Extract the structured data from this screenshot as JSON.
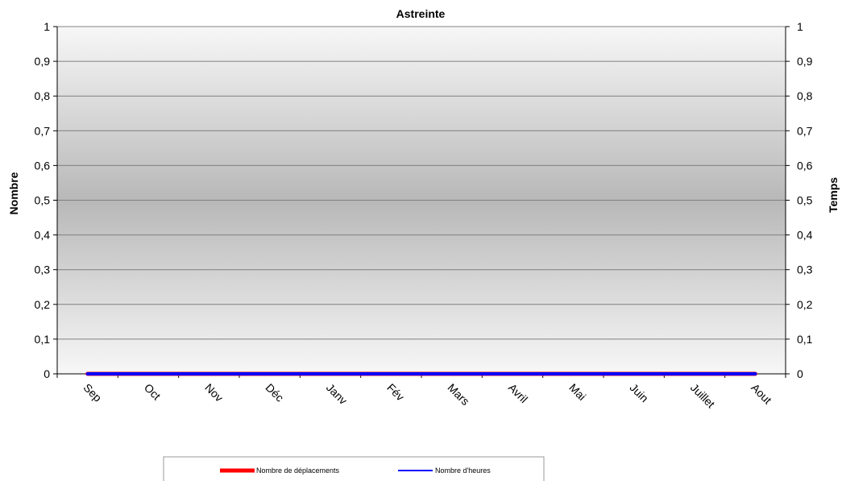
{
  "chart_data": {
    "type": "line",
    "title": "Astreinte",
    "ylabel_left": "Nombre",
    "ylabel_right": "Temps",
    "categories": [
      "Sep",
      "Oct",
      "Nov",
      "Déc",
      "Janv",
      "Fév",
      "Mars",
      "Avril",
      "Mai",
      "Juin",
      "Juillet",
      "Aout"
    ],
    "y_ticks": [
      "0",
      "0,1",
      "0,2",
      "0,3",
      "0,4",
      "0,5",
      "0,6",
      "0,7",
      "0,8",
      "0,9",
      "1"
    ],
    "ylim": [
      0,
      1
    ],
    "y2lim": [
      0,
      1
    ],
    "grid": true,
    "legend_position": "bottom",
    "series": [
      {
        "name": "Nombre de déplacements",
        "color": "#ff0000",
        "axis": "left",
        "values": [
          0,
          0,
          0,
          0,
          0,
          0,
          0,
          0,
          0,
          0,
          0,
          0
        ]
      },
      {
        "name": "Nombre d'heures",
        "color": "#0000ff",
        "axis": "right",
        "values": [
          0,
          0,
          0,
          0,
          0,
          0,
          0,
          0,
          0,
          0,
          0,
          0
        ]
      }
    ]
  }
}
